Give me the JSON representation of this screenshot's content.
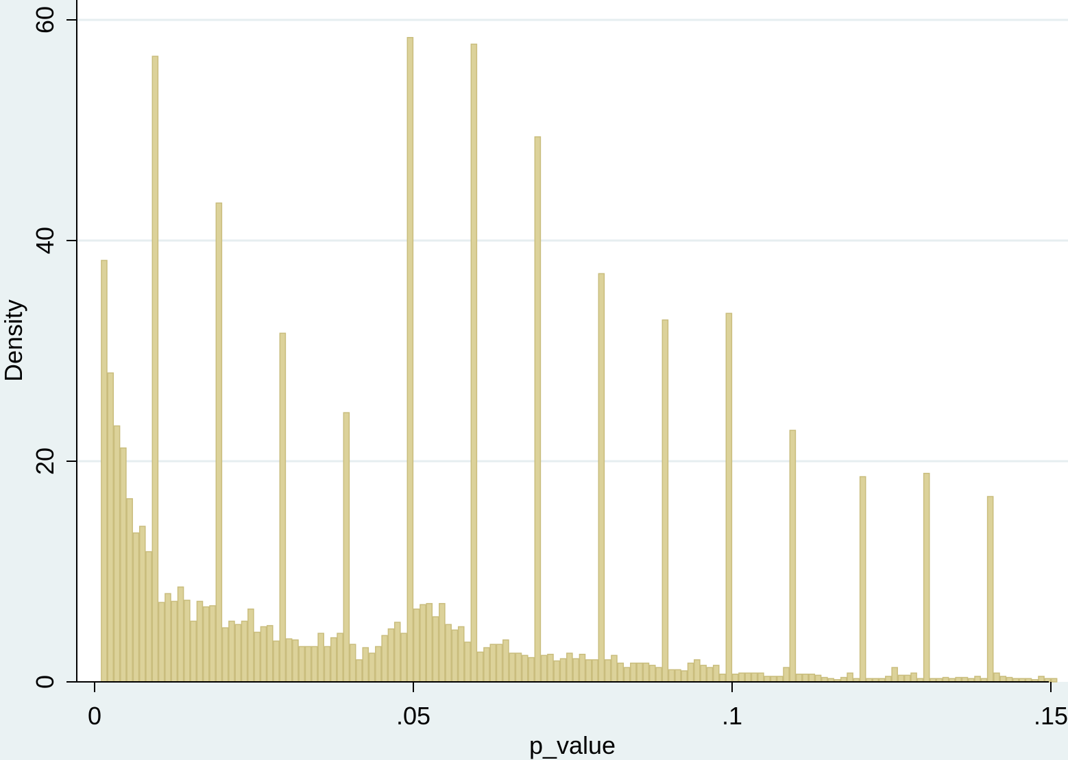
{
  "chart_data": {
    "type": "bar",
    "subtype": "histogram",
    "title": "",
    "xlabel": "p_value",
    "ylabel": "Density",
    "xlim": [
      0,
      0.15
    ],
    "ylim": [
      0,
      60
    ],
    "grid": "horizontal",
    "legend": "none",
    "colors": {
      "background": "#eaf2f3",
      "plot_area": "#ffffff",
      "bar_fill": "#dcd29a",
      "bar_outline": "#c9bd7d",
      "gridline": "#e6eef0",
      "axis": "#000000"
    },
    "x_ticks": [
      {
        "value": 0,
        "label": "0"
      },
      {
        "value": 0.05,
        "label": ".05"
      },
      {
        "value": 0.1,
        "label": ".1"
      },
      {
        "value": 0.15,
        "label": ".15"
      }
    ],
    "y_ticks": [
      {
        "value": 0,
        "label": "0"
      },
      {
        "value": 20,
        "label": "20"
      },
      {
        "value": 40,
        "label": "40"
      },
      {
        "value": 60,
        "label": "60"
      }
    ],
    "bin_width": 0.001,
    "bin_start": 0.001,
    "values": [
      38.2,
      28.0,
      23.2,
      21.2,
      16.6,
      13.5,
      14.1,
      11.8,
      56.7,
      7.2,
      8.0,
      7.3,
      8.6,
      7.4,
      5.5,
      7.3,
      6.8,
      6.9,
      43.4,
      4.9,
      5.5,
      5.2,
      5.5,
      6.6,
      4.5,
      5.0,
      5.1,
      3.7,
      31.6,
      3.9,
      3.8,
      3.2,
      3.2,
      3.2,
      4.4,
      3.2,
      4.0,
      4.4,
      24.4,
      3.4,
      2.0,
      3.1,
      2.6,
      3.2,
      4.2,
      4.8,
      5.4,
      4.4,
      58.4,
      6.6,
      7.0,
      7.1,
      5.9,
      7.1,
      5.2,
      4.7,
      5.0,
      3.6,
      57.8,
      2.7,
      3.1,
      3.4,
      3.4,
      3.8,
      2.6,
      2.6,
      2.4,
      2.2,
      49.4,
      2.4,
      2.5,
      1.9,
      2.1,
      2.6,
      2.1,
      2.5,
      2.0,
      2.0,
      37.0,
      2.0,
      2.4,
      1.7,
      1.3,
      1.7,
      1.7,
      1.7,
      1.5,
      1.3,
      32.8,
      1.1,
      1.1,
      1.0,
      1.7,
      2.0,
      1.5,
      1.3,
      1.5,
      0.7,
      33.4,
      0.7,
      0.8,
      0.8,
      0.8,
      0.8,
      0.5,
      0.5,
      0.5,
      1.3,
      22.8,
      0.7,
      0.7,
      0.7,
      0.6,
      0.4,
      0.3,
      0.2,
      0.4,
      0.8,
      0.3,
      18.6,
      0.3,
      0.3,
      0.3,
      0.5,
      1.3,
      0.6,
      0.6,
      0.8,
      0.3,
      18.9,
      0.3,
      0.3,
      0.4,
      0.3,
      0.4,
      0.4,
      0.3,
      0.5,
      0.3,
      16.8,
      0.8,
      0.5,
      0.4,
      0.3,
      0.3,
      0.3,
      0.2,
      0.5,
      0.3,
      0.3
    ]
  }
}
